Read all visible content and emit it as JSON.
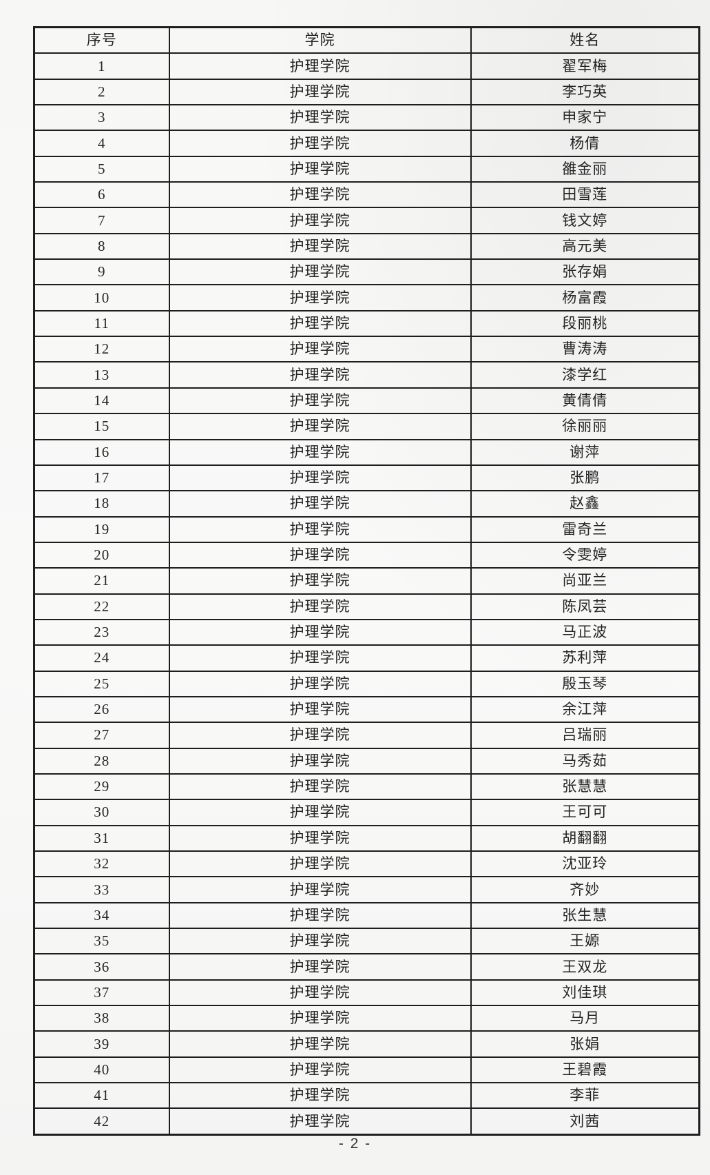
{
  "document": {
    "columns": [
      "序号",
      "学院",
      "姓名"
    ],
    "rows": [
      [
        "1",
        "护理学院",
        "翟军梅"
      ],
      [
        "2",
        "护理学院",
        "李巧英"
      ],
      [
        "3",
        "护理学院",
        "申家宁"
      ],
      [
        "4",
        "护理学院",
        "杨倩"
      ],
      [
        "5",
        "护理学院",
        "雒金丽"
      ],
      [
        "6",
        "护理学院",
        "田雪莲"
      ],
      [
        "7",
        "护理学院",
        "钱文婷"
      ],
      [
        "8",
        "护理学院",
        "高元美"
      ],
      [
        "9",
        "护理学院",
        "张存娟"
      ],
      [
        "10",
        "护理学院",
        "杨富霞"
      ],
      [
        "11",
        "护理学院",
        "段丽桃"
      ],
      [
        "12",
        "护理学院",
        "曹涛涛"
      ],
      [
        "13",
        "护理学院",
        "漆学红"
      ],
      [
        "14",
        "护理学院",
        "黄倩倩"
      ],
      [
        "15",
        "护理学院",
        "徐丽丽"
      ],
      [
        "16",
        "护理学院",
        "谢萍"
      ],
      [
        "17",
        "护理学院",
        "张鹏"
      ],
      [
        "18",
        "护理学院",
        "赵鑫"
      ],
      [
        "19",
        "护理学院",
        "雷奇兰"
      ],
      [
        "20",
        "护理学院",
        "令雯婷"
      ],
      [
        "21",
        "护理学院",
        "尚亚兰"
      ],
      [
        "22",
        "护理学院",
        "陈凤芸"
      ],
      [
        "23",
        "护理学院",
        "马正波"
      ],
      [
        "24",
        "护理学院",
        "苏利萍"
      ],
      [
        "25",
        "护理学院",
        "殷玉琴"
      ],
      [
        "26",
        "护理学院",
        "余江萍"
      ],
      [
        "27",
        "护理学院",
        "吕瑞丽"
      ],
      [
        "28",
        "护理学院",
        "马秀茹"
      ],
      [
        "29",
        "护理学院",
        "张慧慧"
      ],
      [
        "30",
        "护理学院",
        "王可可"
      ],
      [
        "31",
        "护理学院",
        "胡翻翻"
      ],
      [
        "32",
        "护理学院",
        "沈亚玲"
      ],
      [
        "33",
        "护理学院",
        "齐妙"
      ],
      [
        "34",
        "护理学院",
        "张生慧"
      ],
      [
        "35",
        "护理学院",
        "王嫄"
      ],
      [
        "36",
        "护理学院",
        "王双龙"
      ],
      [
        "37",
        "护理学院",
        "刘佳琪"
      ],
      [
        "38",
        "护理学院",
        "马月"
      ],
      [
        "39",
        "护理学院",
        "张娟"
      ],
      [
        "40",
        "护理学院",
        "王碧霞"
      ],
      [
        "41",
        "护理学院",
        "李菲"
      ],
      [
        "42",
        "护理学院",
        "刘茜"
      ]
    ],
    "page_number": "- 2 -"
  },
  "colors": {
    "border": "#1e1e1e",
    "text": "#242424",
    "paper": "#f8f8f7"
  }
}
